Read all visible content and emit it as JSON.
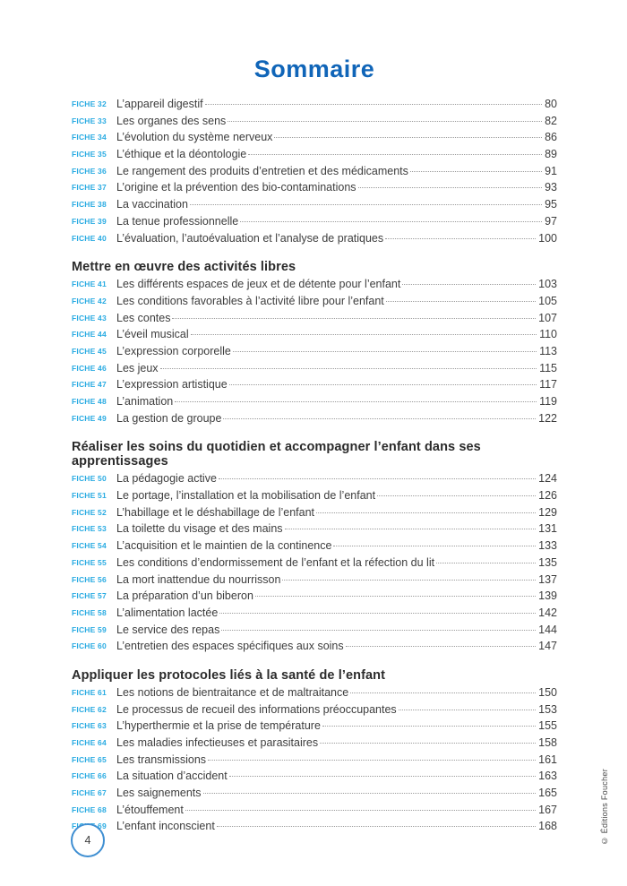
{
  "page": {
    "title": "Sommaire",
    "page_number": "4",
    "copyright": "© Éditions Foucher"
  },
  "colors": {
    "title_blue": "#1065b8",
    "fiche_label_blue": "#29abe2",
    "body_text": "#3d3d3d",
    "circle_border_blue": "#3f8fd2",
    "leader_dots": "#9b9b9b"
  },
  "sections": [
    {
      "heading": null,
      "entries": [
        {
          "fiche": "FICHE 32",
          "title": "L’appareil digestif",
          "page": "80"
        },
        {
          "fiche": "FICHE 33",
          "title": "Les organes des sens",
          "page": "82"
        },
        {
          "fiche": "FICHE 34",
          "title": "L’évolution du système nerveux",
          "page": "86"
        },
        {
          "fiche": "FICHE 35",
          "title": "L’éthique et la déontologie",
          "page": "89"
        },
        {
          "fiche": "FICHE 36",
          "title": "Le rangement des produits d’entretien et des médicaments",
          "page": "91"
        },
        {
          "fiche": "FICHE 37",
          "title": "L’origine et la prévention des bio-contaminations",
          "page": "93"
        },
        {
          "fiche": "FICHE 38",
          "title": "La vaccination",
          "page": "95"
        },
        {
          "fiche": "FICHE 39",
          "title": "La tenue professionnelle",
          "page": "97"
        },
        {
          "fiche": "FICHE 40",
          "title": "L’évaluation, l’autoévaluation et l’analyse de pratiques",
          "page": "100"
        }
      ]
    },
    {
      "heading": "Mettre en œuvre des activités libres",
      "entries": [
        {
          "fiche": "FICHE 41",
          "title": "Les différents espaces de jeux et de détente pour l’enfant",
          "page": "103"
        },
        {
          "fiche": "FICHE 42",
          "title": "Les conditions favorables à l’activité libre pour l’enfant",
          "page": "105"
        },
        {
          "fiche": "FICHE 43",
          "title": "Les contes",
          "page": "107"
        },
        {
          "fiche": "FICHE 44",
          "title": "L’éveil musical",
          "page": "110"
        },
        {
          "fiche": "FICHE 45",
          "title": "L’expression corporelle",
          "page": "113"
        },
        {
          "fiche": "FICHE 46",
          "title": "Les jeux",
          "page": "115"
        },
        {
          "fiche": "FICHE 47",
          "title": "L’expression artistique",
          "page": "117"
        },
        {
          "fiche": "FICHE 48",
          "title": "L’animation",
          "page": "119"
        },
        {
          "fiche": "FICHE 49",
          "title": "La gestion de groupe",
          "page": "122"
        }
      ]
    },
    {
      "heading": "Réaliser les soins du quotidien et accompagner l’enfant dans ses apprentissages",
      "entries": [
        {
          "fiche": "FICHE 50",
          "title": "La pédagogie active",
          "page": "124"
        },
        {
          "fiche": "FICHE 51",
          "title": "Le portage, l’installation et la mobilisation de l’enfant",
          "page": "126"
        },
        {
          "fiche": "FICHE 52",
          "title": "L’habillage et le déshabillage de l’enfant",
          "page": "129"
        },
        {
          "fiche": "FICHE 53",
          "title": "La toilette du visage et des mains",
          "page": "131"
        },
        {
          "fiche": "FICHE 54",
          "title": "L’acquisition et le maintien de la continence",
          "page": "133"
        },
        {
          "fiche": "FICHE 55",
          "title": "Les conditions d’endormissement de l’enfant et la réfection du lit",
          "page": "135"
        },
        {
          "fiche": "FICHE 56",
          "title": "La mort inattendue du nourrisson",
          "page": "137"
        },
        {
          "fiche": "FICHE 57",
          "title": "La préparation d’un biberon",
          "page": "139"
        },
        {
          "fiche": "FICHE 58",
          "title": "L’alimentation lactée",
          "page": "142"
        },
        {
          "fiche": "FICHE 59",
          "title": "Le service des repas",
          "page": "144"
        },
        {
          "fiche": "FICHE 60",
          "title": "L’entretien des espaces spécifiques aux soins",
          "page": "147"
        }
      ]
    },
    {
      "heading": "Appliquer les protocoles liés à la santé de l’enfant",
      "entries": [
        {
          "fiche": "FICHE 61",
          "title": "Les notions de bientraitance et de maltraitance",
          "page": "150"
        },
        {
          "fiche": "FICHE 62",
          "title": "Le processus de recueil des informations préoccupantes",
          "page": "153"
        },
        {
          "fiche": "FICHE 63",
          "title": "L’hyperthermie et la prise de température",
          "page": "155"
        },
        {
          "fiche": "FICHE 64",
          "title": "Les maladies infectieuses et parasitaires",
          "page": "158"
        },
        {
          "fiche": "FICHE 65",
          "title": "Les transmissions",
          "page": "161"
        },
        {
          "fiche": "FICHE 66",
          "title": "La situation d’accident",
          "page": "163"
        },
        {
          "fiche": "FICHE 67",
          "title": "Les saignements",
          "page": "165"
        },
        {
          "fiche": "FICHE 68",
          "title": "L’étouffement",
          "page": "167"
        },
        {
          "fiche": "FICHE 69",
          "title": "L’enfant inconscient",
          "page": "168"
        }
      ]
    }
  ]
}
